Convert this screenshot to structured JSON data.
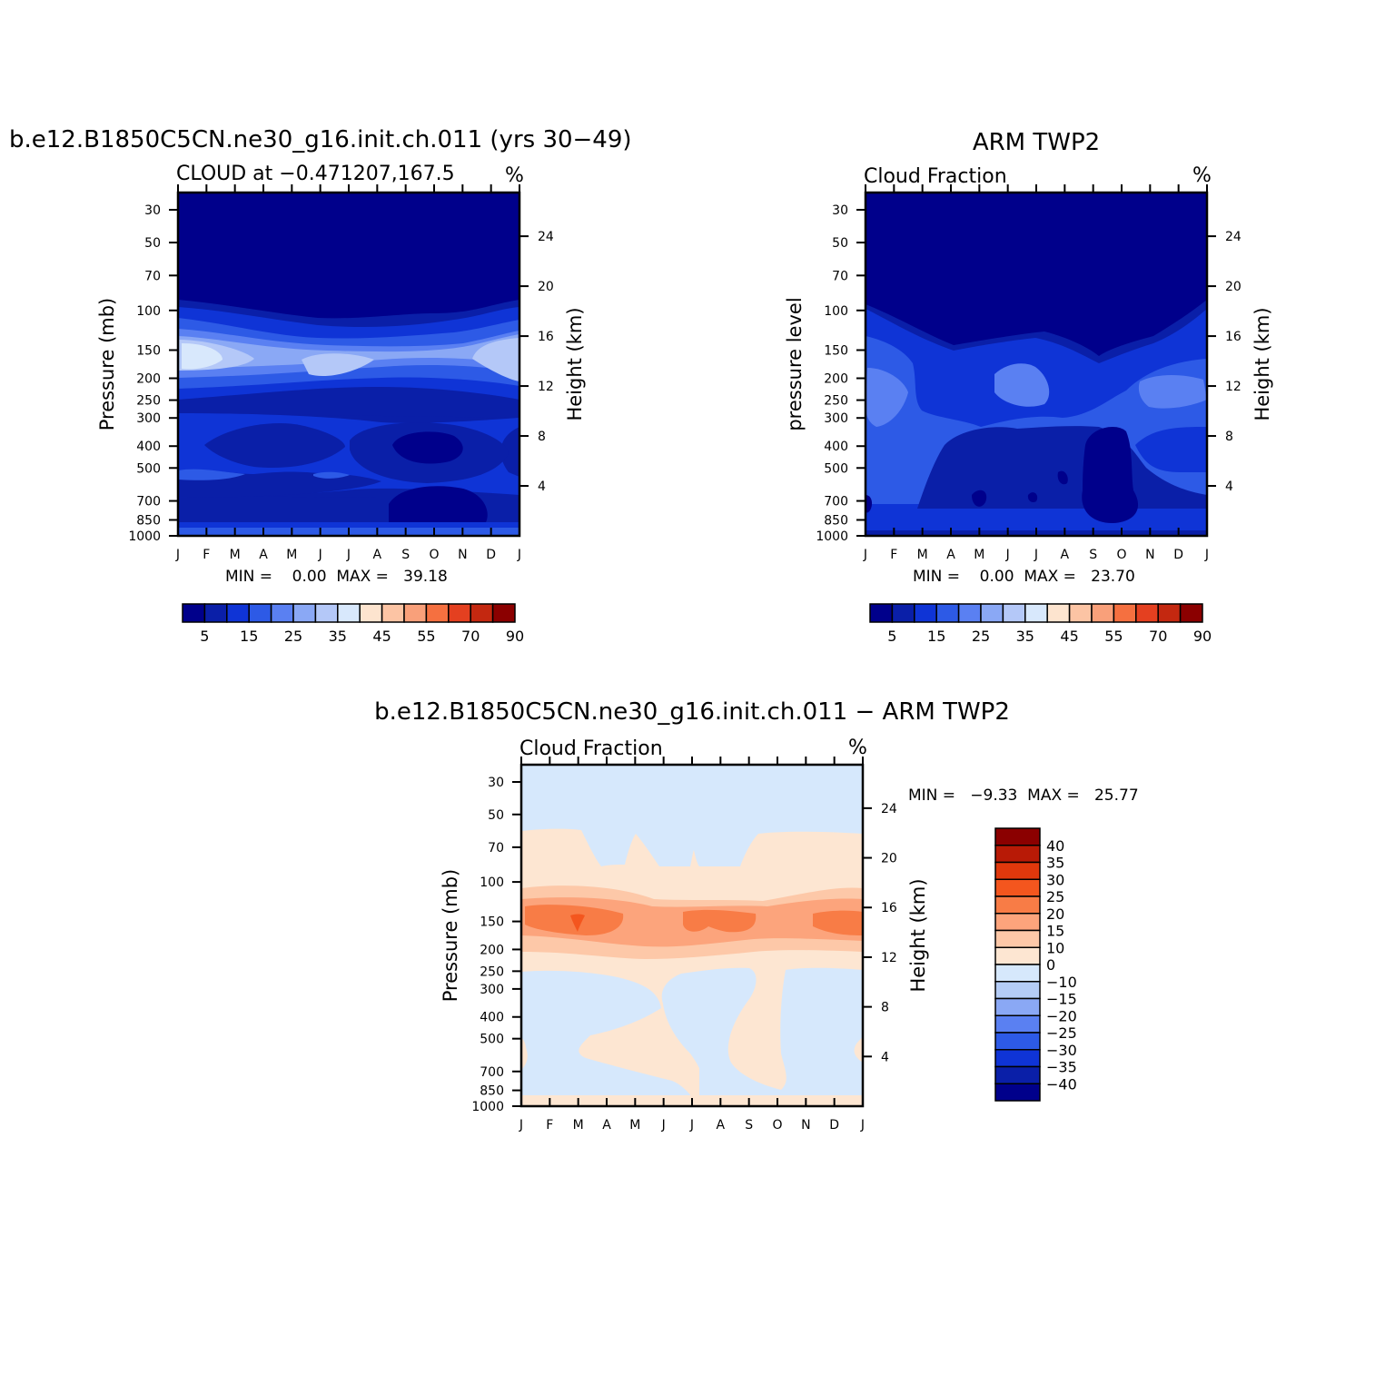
{
  "chart_data": [
    {
      "type": "heatmap",
      "title": "b.e12.B1850C5CN.ne30_g16.init.ch.011 (yrs 30−49)",
      "subtitle": "CLOUD at −0.471207,167.5",
      "units": "%",
      "xlabel": "",
      "ylabel": "Pressure (mb)",
      "ylabel_right": "Height (km)",
      "x_ticks": [
        "J",
        "F",
        "M",
        "A",
        "M",
        "J",
        "J",
        "A",
        "S",
        "O",
        "N",
        "D",
        "J"
      ],
      "y_ticks": [
        "30",
        "50",
        "70",
        "100",
        "150",
        "200",
        "250",
        "300",
        "400",
        "500",
        "700",
        "850",
        "1000"
      ],
      "y_ticks_right": [
        "24",
        "20",
        "16",
        "12",
        "8",
        "4"
      ],
      "stats": "MIN =    0.00  MAX =   39.18",
      "colorbar": {
        "labels": [
          "5",
          "15",
          "25",
          "35",
          "45",
          "55",
          "70",
          "90"
        ],
        "colors": [
          "#00008b",
          "#0a1fa8",
          "#0f34d6",
          "#2d5ae6",
          "#5a80f2",
          "#8aa8f5",
          "#b4c8f8",
          "#d8e8fc",
          "#fde4cf",
          "#fcc4a4",
          "#f9a07a",
          "#f57040",
          "#e44020",
          "#c42810",
          "#8b0000"
        ]
      }
    },
    {
      "type": "heatmap",
      "title": "ARM TWP2",
      "subtitle": "Cloud Fraction",
      "units": "%",
      "xlabel": "",
      "ylabel": "pressure level",
      "ylabel_right": "Height (km)",
      "x_ticks": [
        "J",
        "F",
        "M",
        "A",
        "M",
        "J",
        "J",
        "A",
        "S",
        "O",
        "N",
        "D",
        "J"
      ],
      "y_ticks": [
        "30",
        "50",
        "70",
        "100",
        "150",
        "200",
        "250",
        "300",
        "400",
        "500",
        "700",
        "850",
        "1000"
      ],
      "y_ticks_right": [
        "24",
        "20",
        "16",
        "12",
        "8",
        "4"
      ],
      "stats": "MIN =    0.00  MAX =   23.70",
      "colorbar": {
        "labels": [
          "5",
          "15",
          "25",
          "35",
          "45",
          "55",
          "70",
          "90"
        ],
        "colors": [
          "#00008b",
          "#0a1fa8",
          "#0f34d6",
          "#2d5ae6",
          "#5a80f2",
          "#8aa8f5",
          "#b4c8f8",
          "#d8e8fc",
          "#fde4cf",
          "#fcc4a4",
          "#f9a07a",
          "#f57040",
          "#e44020",
          "#c42810",
          "#8b0000"
        ]
      }
    },
    {
      "type": "heatmap",
      "title": "b.e12.B1850C5CN.ne30_g16.init.ch.011 − ARM TWP2",
      "subtitle": "Cloud Fraction",
      "units": "%",
      "xlabel": "",
      "ylabel": "Pressure (mb)",
      "ylabel_right": "Height (km)",
      "x_ticks": [
        "J",
        "F",
        "M",
        "A",
        "M",
        "J",
        "J",
        "A",
        "S",
        "O",
        "N",
        "D",
        "J"
      ],
      "y_ticks": [
        "30",
        "50",
        "70",
        "100",
        "150",
        "200",
        "250",
        "300",
        "400",
        "500",
        "700",
        "850",
        "1000"
      ],
      "y_ticks_right": [
        "24",
        "20",
        "16",
        "12",
        "8",
        "4"
      ],
      "stats": "MIN =   −9.33  MAX =   25.77",
      "colorbar": {
        "labels": [
          "40",
          "35",
          "30",
          "25",
          "20",
          "15",
          "10",
          "0",
          "−10",
          "−15",
          "−20",
          "−25",
          "−30",
          "−35",
          "−40"
        ],
        "colors": [
          "#8b0000",
          "#b81a06",
          "#e0380c",
          "#f4561e",
          "#f87c46",
          "#fca47c",
          "#fdc8a8",
          "#fde6d2",
          "#d6e8fc",
          "#b4ccf6",
          "#8aa8f5",
          "#5a80f2",
          "#2d5ae6",
          "#0f34d6",
          "#0a1fa8",
          "#00008b"
        ]
      }
    }
  ]
}
